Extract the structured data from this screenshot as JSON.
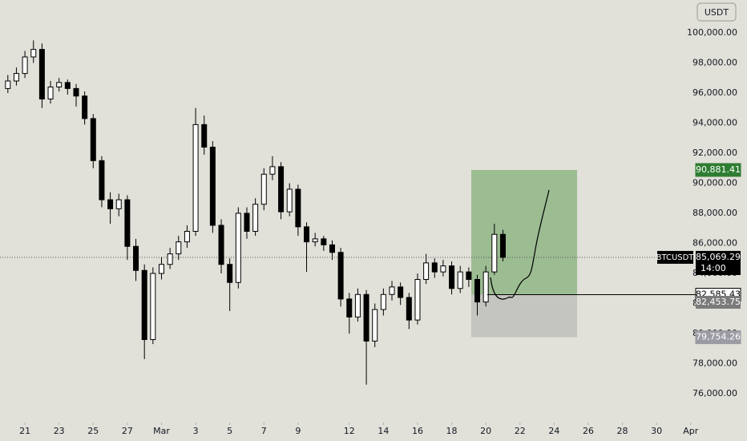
{
  "chart_data": {
    "type": "candlestick",
    "currency": "USDT",
    "x": [
      20,
      20.5,
      21,
      21.5,
      22,
      22.5,
      23,
      23.5,
      24,
      24.5,
      25,
      25.5,
      26,
      26.5,
      27,
      27.5,
      28,
      28.5,
      29,
      29.5,
      30,
      30.5,
      31,
      31.5,
      32,
      32.5,
      33,
      33.5,
      34,
      34.5,
      35,
      35.5,
      36,
      36.5,
      37,
      37.5,
      38,
      38.5,
      39,
      39.5,
      40,
      40.5,
      41,
      41.5,
      42,
      42.5,
      43,
      43.5,
      44,
      44.5,
      45,
      45.5,
      46,
      46.5,
      47,
      47.5,
      48,
      48.5,
      49
    ],
    "open": [
      96300,
      96800,
      97300,
      98400,
      98900,
      95600,
      96400,
      96700,
      96300,
      95800,
      94300,
      91500,
      88900,
      88300,
      88900,
      85800,
      84200,
      79600,
      84000,
      84600,
      85300,
      86100,
      86800,
      93900,
      92400,
      87200,
      84600,
      83400,
      88000,
      86800,
      88600,
      90600,
      91100,
      88100,
      89600,
      87100,
      86100,
      86300,
      85900,
      85400,
      82300,
      81100,
      82600,
      79500,
      81600,
      82600,
      83100,
      82400,
      80900,
      83600,
      84700,
      84100,
      84500,
      83000,
      84100,
      83600,
      82100,
      84100,
      86600
    ],
    "high": [
      97200,
      97700,
      98800,
      99500,
      99300,
      96800,
      97000,
      96900,
      96600,
      96100,
      94600,
      91800,
      89400,
      89300,
      89200,
      86300,
      84600,
      84400,
      85100,
      85700,
      86500,
      87200,
      95000,
      94500,
      92800,
      87600,
      85000,
      88400,
      88400,
      89000,
      91000,
      91800,
      91400,
      90000,
      89900,
      87400,
      86700,
      86500,
      86200,
      85700,
      82700,
      83000,
      82900,
      82000,
      83000,
      83500,
      83400,
      82700,
      84000,
      85300,
      85000,
      84900,
      84800,
      84500,
      84400,
      83900,
      84500,
      87300,
      86900
    ],
    "low": [
      96000,
      96500,
      97000,
      98000,
      95000,
      95300,
      96100,
      95900,
      95100,
      93900,
      91000,
      88400,
      87300,
      87800,
      84900,
      83500,
      78300,
      79300,
      83600,
      84300,
      84900,
      85700,
      86500,
      91900,
      86700,
      84000,
      81500,
      83000,
      86300,
      86500,
      88200,
      90200,
      87600,
      87800,
      86500,
      84100,
      85800,
      85500,
      84900,
      81800,
      80000,
      80800,
      76600,
      79100,
      81200,
      82200,
      81900,
      80300,
      80600,
      83300,
      83700,
      83800,
      82600,
      82700,
      83100,
      81200,
      81800,
      83900,
      84800
    ],
    "close": [
      96800,
      97300,
      98400,
      98900,
      95600,
      96400,
      96700,
      96300,
      95800,
      94300,
      91500,
      88900,
      88300,
      88900,
      85800,
      84200,
      79600,
      84000,
      84600,
      85300,
      86100,
      86800,
      93900,
      92400,
      87200,
      84600,
      83400,
      88000,
      86800,
      88600,
      90600,
      91100,
      88100,
      89600,
      87100,
      86100,
      86300,
      85900,
      85400,
      82300,
      81100,
      82600,
      79500,
      81600,
      82600,
      83100,
      82400,
      80900,
      83600,
      84700,
      84100,
      84500,
      83000,
      84100,
      83600,
      82100,
      84100,
      86600,
      85069.29
    ],
    "up_color": "#ffffff",
    "down_color": "#000000",
    "xlim": [
      19.54,
      60.2
    ],
    "ylim": [
      74080,
      102187
    ],
    "yticks": [
      {
        "value": 76000,
        "label": "76,000.00"
      },
      {
        "value": 78000,
        "label": "78,000.00"
      },
      {
        "value": 80000,
        "label": "80,000.00"
      },
      {
        "value": 82000,
        "label": "82,000.00"
      },
      {
        "value": 84000,
        "label": "84,000.00"
      },
      {
        "value": 86000,
        "label": "86,000.00"
      },
      {
        "value": 88000,
        "label": "88,000.00"
      },
      {
        "value": 90000,
        "label": "90,000.00"
      },
      {
        "value": 92000,
        "label": "92,000.00"
      },
      {
        "value": 94000,
        "label": "94,000.00"
      },
      {
        "value": 96000,
        "label": "96,000.00"
      },
      {
        "value": 98000,
        "label": "98,000.00"
      },
      {
        "value": 100000,
        "label": "100,000.00"
      }
    ],
    "xticks": [
      21,
      23,
      25,
      27,
      {
        "value": 29,
        "label": "Mar"
      },
      {
        "value": 31,
        "label": "3"
      },
      {
        "value": 33,
        "label": "5"
      },
      {
        "value": 35,
        "label": "7"
      },
      {
        "value": 37,
        "label": "9"
      },
      {
        "value": 40,
        "label": "12"
      },
      {
        "value": 42,
        "label": "14"
      },
      {
        "value": 44,
        "label": "16"
      },
      {
        "value": 46,
        "label": "18"
      },
      {
        "value": 48,
        "label": "20"
      },
      {
        "value": 50,
        "label": "22"
      },
      {
        "value": 52,
        "label": "24"
      },
      {
        "value": 54,
        "label": "26"
      },
      {
        "value": 56,
        "label": "28"
      },
      {
        "value": 58,
        "label": "30"
      },
      {
        "value": 60,
        "label": "Apr"
      }
    ],
    "last_price": {
      "symbol": "BTCUSDT",
      "value": 85069.29,
      "label": "85,069.29",
      "countdown": "14:00"
    },
    "position": {
      "target": {
        "value": 90881.41,
        "label": "90,881.41"
      },
      "entry": {
        "value": 82585.43,
        "label": "82,585.43"
      },
      "stop": {
        "value": 79754.26,
        "label": "79,754.26"
      },
      "target_color": "#8fb585",
      "stop_color": "#c5c5c0"
    },
    "levels": [
      {
        "value": 82453.75,
        "label": "82,453.75"
      }
    ]
  }
}
